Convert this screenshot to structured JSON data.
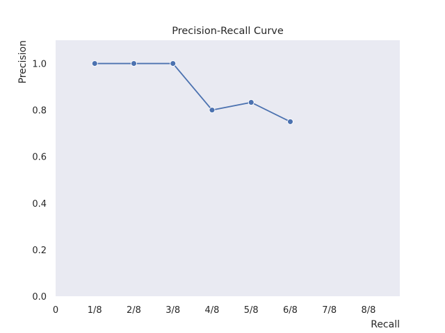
{
  "chart_data": {
    "type": "line",
    "title": "Precision-Recall Curve",
    "xlabel": "Recall",
    "ylabel": "Precision",
    "x_ticks": [
      0,
      1,
      2,
      3,
      4,
      5,
      6,
      7,
      8
    ],
    "x_tick_labels": [
      "0",
      "1/8",
      "2/8",
      "3/8",
      "4/8",
      "5/8",
      "6/8",
      "7/8",
      "8/8"
    ],
    "y_ticks": [
      0.0,
      0.2,
      0.4,
      0.6,
      0.8,
      1.0
    ],
    "y_tick_labels": [
      "0.0",
      "0.2",
      "0.4",
      "0.6",
      "0.8",
      "1.0"
    ],
    "xlim": [
      0,
      8.8
    ],
    "ylim": [
      0.0,
      1.1
    ],
    "grid": false,
    "background_color": "#e9eaf2",
    "series": [
      {
        "color": "#4c72b0",
        "marker": "circle",
        "x": [
          1,
          2,
          3,
          4,
          5,
          6
        ],
        "y": [
          1.0,
          1.0,
          1.0,
          0.8,
          0.833,
          0.75
        ]
      }
    ]
  }
}
